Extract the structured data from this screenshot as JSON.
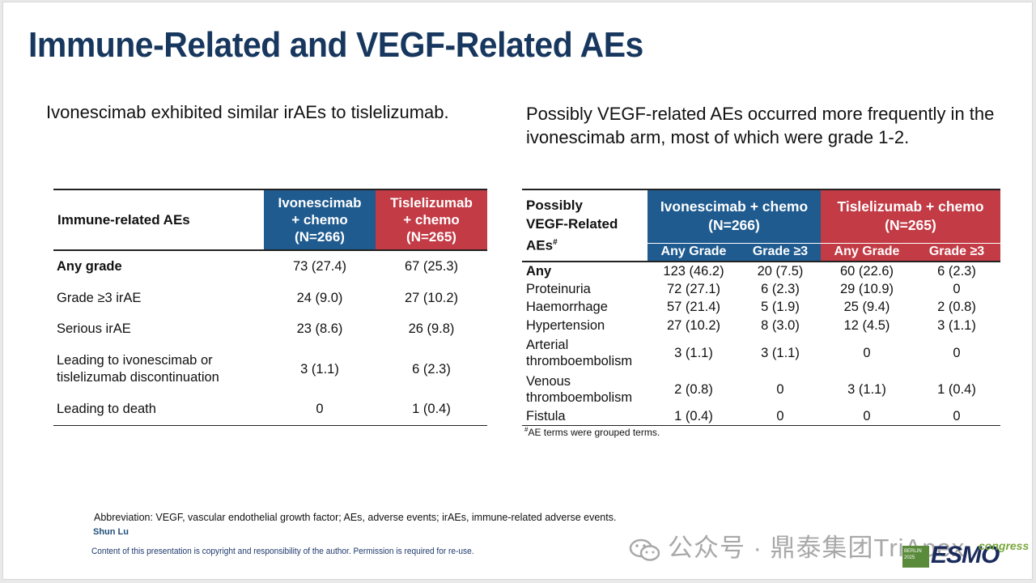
{
  "title": "Immune-Related and VEGF-Related AEs",
  "intro_left": "Ivonescimab exhibited similar irAEs to tislelizumab.",
  "intro_right": "Possibly VEGF-related AEs occurred more frequently in the ivonescimab arm, most of which were grade 1-2.",
  "immune_table": {
    "header_label": "Immune-related AEs",
    "col_ivo": [
      "Ivonescimab",
      "+ chemo",
      "(N=266)"
    ],
    "col_tis": [
      "Tislelizumab",
      "+ chemo",
      "(N=265)"
    ],
    "rows": [
      {
        "label": "Any grade",
        "ivo": "73 (27.4)",
        "tis": "67 (25.3)"
      },
      {
        "label": "Grade ≥3 irAE",
        "ivo": "24 (9.0)",
        "tis": "27 (10.2)"
      },
      {
        "label": "Serious irAE",
        "ivo": "23 (8.6)",
        "tis": "26 (9.8)"
      },
      {
        "label_lines": [
          "Leading to ivonescimab or",
          "tislelizumab discontinuation"
        ],
        "ivo": "3 (1.1)",
        "tis": "6 (2.3)"
      },
      {
        "label": "Leading to death",
        "ivo": "0",
        "tis": "1 (0.4)"
      }
    ]
  },
  "vegf_table": {
    "header_label_lines": [
      "Possibly",
      "VEGF-Related",
      "AEs"
    ],
    "header_label_sup": "#",
    "col_ivo": [
      "Ivonescimab + chemo",
      "(N=266)"
    ],
    "col_tis": [
      "Tislelizumab + chemo",
      "(N=265)"
    ],
    "sub_any": "Any Grade",
    "sub_g3": "Grade ≥3",
    "rows": [
      {
        "label": "Any",
        "ivo_any": "123 (46.2)",
        "ivo_g3": "20 (7.5)",
        "tis_any": "60 (22.6)",
        "tis_g3": "6 (2.3)"
      },
      {
        "label": "Proteinuria",
        "ivo_any": "72 (27.1)",
        "ivo_g3": "6 (2.3)",
        "tis_any": "29 (10.9)",
        "tis_g3": "0"
      },
      {
        "label": "Haemorrhage",
        "ivo_any": "57 (21.4)",
        "ivo_g3": "5 (1.9)",
        "tis_any": "25 (9.4)",
        "tis_g3": "2 (0.8)"
      },
      {
        "label": "Hypertension",
        "ivo_any": "27 (10.2)",
        "ivo_g3": "8 (3.0)",
        "tis_any": "12 (4.5)",
        "tis_g3": "3 (1.1)"
      },
      {
        "label_lines": [
          "Arterial",
          "thromboembolism"
        ],
        "ivo_any": "3 (1.1)",
        "ivo_g3": "3 (1.1)",
        "tis_any": "0",
        "tis_g3": "0"
      },
      {
        "label_lines": [
          "Venous",
          "thromboembolism"
        ],
        "ivo_any": "2 (0.8)",
        "ivo_g3": "0",
        "tis_any": "3 (1.1)",
        "tis_g3": "1 (0.4)"
      },
      {
        "label": "Fistula",
        "ivo_any": "1 (0.4)",
        "ivo_g3": "0",
        "tis_any": "0",
        "tis_g3": "0"
      }
    ]
  },
  "footnote_sup": "#",
  "footnote": "AE terms were grouped terms.",
  "abbreviation": "Abbreviation: VEGF, vascular endothelial growth factor; AEs, adverse events;  irAEs, immune-related adverse events.",
  "author": "Shun Lu",
  "copyright": "Content of this presentation is copyright and responsibility of the author. Permission is required for re-use.",
  "watermark": "公众号 · 鼎泰集团TriApex",
  "watermark_icon": "wechat-icon",
  "logo": {
    "box_line1": "BERLIN",
    "box_line2": "2025",
    "word": "ESMO",
    "congress": "congress"
  },
  "colors": {
    "title": "#17375e",
    "ivonescimab_header": "#1f5b8f",
    "tislelizumab_header": "#c23b45"
  }
}
